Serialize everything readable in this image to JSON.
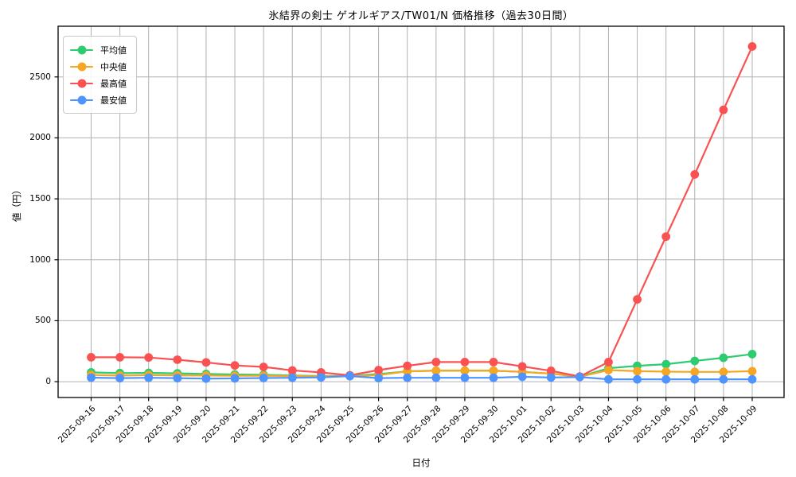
{
  "chart_data": {
    "type": "line",
    "title": "氷結界の剣士 ゲオルギアス/TW01/N 価格推移（過去30日間）",
    "xlabel": "日付",
    "ylabel": "値（円）",
    "grid": true,
    "legend_position": "upper left",
    "ylim": [
      -130,
      2916
    ],
    "y_ticks": [
      0,
      500,
      1000,
      1500,
      2000,
      2500
    ],
    "y_tick_labels": [
      "0",
      "500",
      "1000",
      "1500",
      "2000",
      "2500"
    ],
    "x_tick_labels": [
      "2025-09-16",
      "2025-09-17",
      "2025-09-18",
      "2025-09-19",
      "2025-09-20",
      "2025-09-21",
      "2025-09-22",
      "2025-09-23",
      "2025-09-24",
      "2025-09-25",
      "2025-09-26",
      "2025-09-27",
      "2025-09-28",
      "2025-09-29",
      "2025-09-30",
      "2025-10-01",
      "2025-10-02",
      "2025-10-03",
      "2025-10-04",
      "2025-10-05",
      "2025-10-06",
      "2025-10-07",
      "2025-10-08",
      "2025-10-09"
    ],
    "series": [
      {
        "key": "average",
        "name": "平均値",
        "color": "#2ecc71",
        "values": [
          76,
          70,
          72,
          68,
          63,
          59,
          56,
          50,
          46,
          48,
          62,
          85,
          90,
          90,
          90,
          80,
          66,
          40,
          110,
          130,
          143,
          170,
          196,
          226
        ]
      },
      {
        "key": "median",
        "name": "中央値",
        "color": "#f5a623",
        "values": [
          55,
          50,
          54,
          52,
          50,
          48,
          48,
          46,
          44,
          45,
          54,
          84,
          90,
          90,
          90,
          80,
          66,
          40,
          95,
          86,
          82,
          80,
          80,
          86
        ]
      },
      {
        "key": "max",
        "name": "最高値",
        "color": "#fa5252",
        "values": [
          200,
          200,
          198,
          180,
          158,
          133,
          121,
          92,
          76,
          52,
          95,
          130,
          161,
          161,
          161,
          125,
          89,
          42,
          161,
          675,
          1190,
          1700,
          2230,
          2750
        ]
      },
      {
        "key": "min",
        "name": "最安値",
        "color": "#4d94ff",
        "values": [
          33,
          29,
          32,
          29,
          25,
          27,
          30,
          32,
          35,
          46,
          29,
          32,
          32,
          32,
          32,
          40,
          34,
          38,
          19,
          19,
          19,
          19,
          19,
          19
        ]
      }
    ]
  },
  "colors": {
    "grid": "#b0b0b0",
    "axis": "#000000",
    "background": "#ffffff",
    "legend_border": "#c9c9c9"
  }
}
